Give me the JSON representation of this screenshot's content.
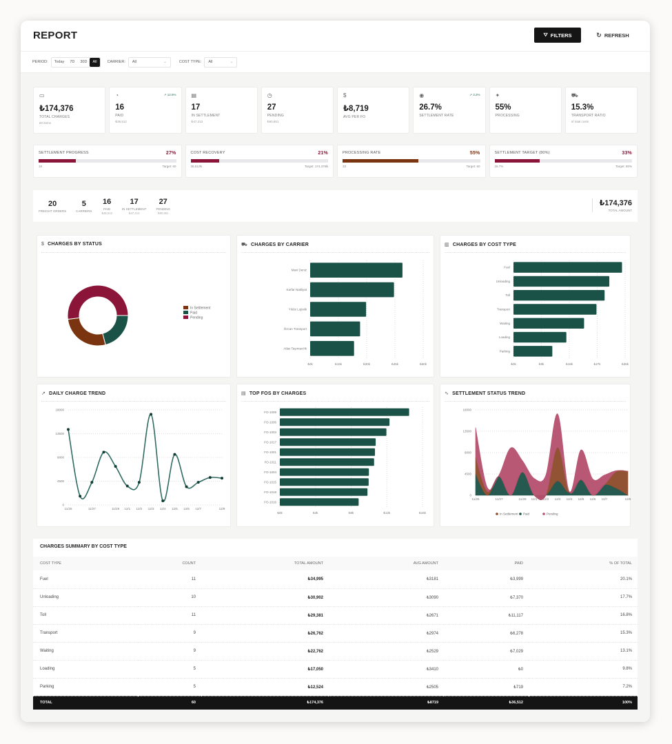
{
  "header": {
    "title": "REPORT",
    "filters_label": "FILTERS",
    "refresh_label": "REFRESH"
  },
  "filters": {
    "period_label": "PERIOD:",
    "periods": [
      "Today",
      "7D",
      "30D",
      "All"
    ],
    "active_period": "All",
    "carrier_label": "CARRIER:",
    "carrier_value": "All",
    "cost_type_label": "COST TYPE:",
    "cost_type_value": "All"
  },
  "kpis": [
    {
      "icon": "credit-card-icon",
      "value": "₺174,376",
      "label": "TOTAL CHARGES",
      "sub": "60 items",
      "trend": ""
    },
    {
      "icon": "check-circle-icon",
      "value": "16",
      "label": "PAID",
      "sub": "₺36,512",
      "trend": "↗ 12.5%"
    },
    {
      "icon": "document-icon",
      "value": "17",
      "label": "IN SETTLEMENT",
      "sub": "₺47,213",
      "trend": ""
    },
    {
      "icon": "clock-icon",
      "value": "27",
      "label": "PENDING",
      "sub": "₺90,651",
      "trend": ""
    },
    {
      "icon": "dollar-icon",
      "value": "₺8,719",
      "label": "AVG PER FO",
      "sub": "",
      "trend": ""
    },
    {
      "icon": "target-icon",
      "value": "26.7%",
      "label": "SETTLEMENT RATE",
      "sub": "",
      "trend": "↗ 3.2%"
    },
    {
      "icon": "activity-icon",
      "value": "55%",
      "label": "PROCESSING",
      "sub": "",
      "trend": ""
    },
    {
      "icon": "truck-icon",
      "value": "15.3%",
      "label": "TRANSPORT RATIO",
      "sub": "of total costs",
      "trend": ""
    }
  ],
  "progress": [
    {
      "label": "SETTLEMENT PROGRESS",
      "pct_text": "27%",
      "value": 27,
      "left": "16",
      "right": "Target: 60",
      "color": "#8b1538"
    },
    {
      "label": "COST RECOVERY",
      "pct_text": "21%",
      "value": 21,
      "left": "36,512₺",
      "right": "Target: 174,376₺",
      "color": "#8b1538"
    },
    {
      "label": "PROCESSING RATE",
      "pct_text": "55%",
      "value": 55,
      "left": "33",
      "right": "Target: 60",
      "color": "#7a3410"
    },
    {
      "label": "SETTLEMENT TARGET (80%)",
      "pct_text": "33%",
      "value": 33,
      "left": "26.7%",
      "right": "Target: 80%",
      "color": "#8b1538"
    }
  ],
  "summary": {
    "items": [
      {
        "value": "20",
        "label": "FREIGHT ORDERS",
        "sub": ""
      },
      {
        "value": "5",
        "label": "CARRIERS",
        "sub": ""
      },
      {
        "value": "16",
        "label": "PAID",
        "sub": "₺36,512"
      },
      {
        "value": "17",
        "label": "IN SETTLEMENT",
        "sub": "₺47,213"
      },
      {
        "value": "27",
        "label": "PENDING",
        "sub": "₺90,651"
      }
    ],
    "total_value": "₺174,376",
    "total_label": "TOTAL AMOUNT"
  },
  "colors": {
    "green": "#1b5247",
    "maroon": "#8b1538",
    "brown": "#7a3410",
    "pending_area": "#b5506e"
  },
  "chart_data": [
    {
      "id": "status",
      "type": "pie",
      "title": "CHARGES BY STATUS",
      "categories": [
        "Paid",
        "In Settlement",
        "Pending"
      ],
      "values": [
        36512,
        47213,
        90651
      ],
      "legend": [
        "In Settlement",
        "Paid",
        "Pending"
      ],
      "legend_position": "right"
    },
    {
      "id": "carrier",
      "type": "bar",
      "orientation": "horizontal",
      "title": "CHARGES BY CARRIER",
      "categories": [
        "Mavi Deniz",
        "Karfar Nakliyat",
        "Yıldız Lojistik",
        "Özcan Transport",
        "Atlas Taşımacılık"
      ],
      "values": [
        49000,
        44500,
        29700,
        26500,
        23300
      ],
      "xlim": [
        0,
        60000
      ],
      "ticks": [
        "₺0k",
        "₺15k",
        "₺30k",
        "₺45k",
        "₺60k"
      ]
    },
    {
      "id": "costtype",
      "type": "bar",
      "orientation": "horizontal",
      "title": "CHARGES BY COST TYPE",
      "categories": [
        "Fuel",
        "Unloading",
        "Toll",
        "Transport",
        "Waiting",
        "Loading",
        "Parking"
      ],
      "values": [
        34995,
        30902,
        29381,
        26762,
        22762,
        17050,
        12524
      ],
      "xlim": [
        0,
        36000
      ],
      "ticks": [
        "₺0k",
        "₺9k",
        "₺18k",
        "₺27k",
        "₺36k"
      ]
    },
    {
      "id": "daily",
      "type": "line",
      "title": "DAILY CHARGE TREND",
      "x": [
        "11/25",
        "11/26",
        "11/27",
        "11/28",
        "11/29",
        "12/1",
        "12/2",
        "12/3",
        "12/4",
        "12/5",
        "12/6",
        "12/7",
        "12/8",
        "12/9"
      ],
      "x_tick_labels": [
        "11/25",
        "",
        "11/27",
        "",
        "11/29",
        "12/1",
        "12/2",
        "12/3",
        "12/4",
        "12/5",
        "12/6",
        "12/7",
        "",
        "12/9"
      ],
      "values": [
        14300,
        1660,
        4280,
        10000,
        7300,
        3580,
        4280,
        17170,
        790,
        9570,
        3450,
        4280,
        5200,
        5070
      ],
      "ylim": [
        0,
        18000
      ],
      "yticks": [
        "0",
        "4500",
        "9000",
        "13500",
        "18000"
      ],
      "grid": true
    },
    {
      "id": "topfo",
      "type": "bar",
      "orientation": "horizontal",
      "title": "TOP FOS BY CHARGES",
      "categories": [
        "FO-1009",
        "FO-1006",
        "FO-1003",
        "FO-1017",
        "FO-1001",
        "FO-1011",
        "FO-1004",
        "FO-1015",
        "FO-1018",
        "FO-1016"
      ],
      "values": [
        14500,
        12300,
        11950,
        10750,
        10670,
        10570,
        9990,
        9960,
        9830,
        8840
      ],
      "xlim": [
        0,
        16000
      ],
      "ticks": [
        "₺0k",
        "₺4k",
        "₺8k",
        "₺12k",
        "₺16k"
      ]
    },
    {
      "id": "settle",
      "type": "area",
      "stacked": true,
      "title": "SETTLEMENT STATUS TREND",
      "x": [
        "11/25",
        "11/26",
        "11/27",
        "11/28",
        "11/29",
        "12/1",
        "12/2",
        "12/3",
        "12/4",
        "12/5",
        "12/6",
        "12/7",
        "12/8",
        "12/9"
      ],
      "x_tick_labels": [
        "11/25",
        "",
        "11/27",
        "",
        "11/29",
        "12/1",
        "12/2",
        "12/3",
        "12/4",
        "12/5",
        "12/6",
        "12/7",
        "",
        "12/9"
      ],
      "series": [
        {
          "name": "Paid",
          "values": [
            4500,
            0,
            4000,
            0,
            4900,
            0,
            0,
            3000,
            600,
            3300,
            0,
            2200,
            1500,
            0
          ]
        },
        {
          "name": "In Settlement",
          "values": [
            3500,
            800,
            0,
            0,
            0,
            0,
            0,
            7100,
            0,
            0,
            0,
            0,
            3500,
            5070
          ]
        },
        {
          "name": "Pending",
          "values": [
            6300,
            860,
            280,
            10000,
            2400,
            3580,
            4280,
            7070,
            190,
            6270,
            3450,
            2080,
            200,
            0
          ]
        }
      ],
      "legend": [
        "In Settlement",
        "Paid",
        "Pending"
      ],
      "legend_position": "bottom",
      "ylim": [
        0,
        18000
      ],
      "yticks": [
        "0",
        "4500",
        "9000",
        "13500",
        "18000"
      ]
    }
  ],
  "table": {
    "title": "CHARGES SUMMARY BY COST TYPE",
    "columns": [
      "COST TYPE",
      "COUNT",
      "TOTAL AMOUNT",
      "AVG AMOUNT",
      "PAID",
      "% OF TOTAL"
    ],
    "rows": [
      [
        "Fuel",
        "11",
        "₺34,995",
        "₺3181",
        "₺3,999",
        "20.1%"
      ],
      [
        "Unloading",
        "10",
        "₺30,902",
        "₺3090",
        "₺7,370",
        "17.7%"
      ],
      [
        "Toll",
        "11",
        "₺29,381",
        "₺2671",
        "₺11,117",
        "16.8%"
      ],
      [
        "Transport",
        "9",
        "₺26,762",
        "₺2974",
        "₺6,278",
        "15.3%"
      ],
      [
        "Waiting",
        "9",
        "₺22,762",
        "₺2529",
        "₺7,029",
        "13.1%"
      ],
      [
        "Loading",
        "5",
        "₺17,050",
        "₺3410",
        "₺0",
        "9.8%"
      ],
      [
        "Parking",
        "5",
        "₺12,524",
        "₺2505",
        "₺719",
        "7.2%"
      ]
    ],
    "total": [
      "TOTAL",
      "60",
      "₺174,376",
      "₺8719",
      "₺36,512",
      "100%"
    ]
  }
}
